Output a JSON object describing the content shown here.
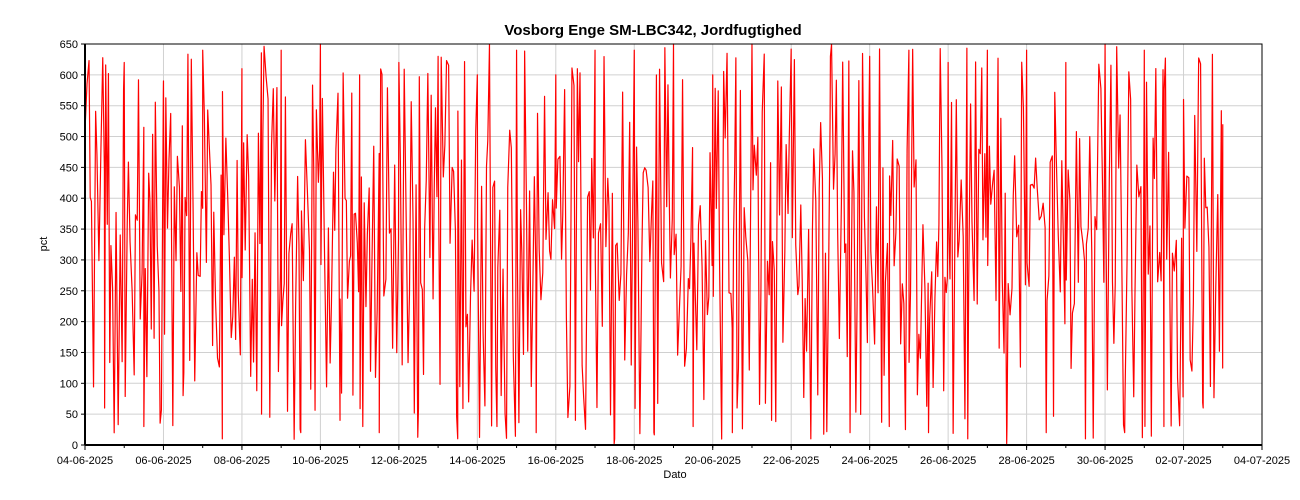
{
  "chart_data": {
    "type": "line",
    "title": "Vosborg Enge SM-LBC342, Jordfugtighed",
    "xlabel": "Dato",
    "ylabel": "pct",
    "ylim": [
      0,
      650
    ],
    "yticks": [
      0,
      50,
      100,
      150,
      200,
      250,
      300,
      350,
      400,
      450,
      500,
      550,
      600,
      650
    ],
    "xlim": [
      "2025-06-04",
      "2025-07-04"
    ],
    "xticks": [
      "04-06-2025",
      "06-06-2025",
      "08-06-2025",
      "10-06-2025",
      "12-06-2025",
      "14-06-2025",
      "16-06-2025",
      "18-06-2025",
      "20-06-2025",
      "22-06-2025",
      "24-06-2025",
      "26-06-2025",
      "28-06-2025",
      "30-06-2025",
      "02-07-2025",
      "04-07-2025"
    ],
    "grid": true,
    "legend": "none",
    "series": [
      {
        "color": "#ff0000",
        "start": "2025-06-04",
        "end": "2025-07-03",
        "range": [
          0,
          650
        ],
        "points": [
          [
            "2025-06-04",
            510
          ],
          [
            "2025-06-04 12:00",
            60
          ],
          [
            "2025-06-05",
            620
          ],
          [
            "2025-06-05 12:00",
            30
          ],
          [
            "2025-06-06",
            590
          ],
          [
            "2025-06-06 12:00",
            80
          ],
          [
            "2025-06-07",
            640
          ],
          [
            "2025-06-07 12:00",
            10
          ],
          [
            "2025-06-08",
            610
          ],
          [
            "2025-06-08 12:00",
            50
          ],
          [
            "2025-06-09",
            640
          ],
          [
            "2025-06-09 12:00",
            20
          ],
          [
            "2025-06-10",
            650
          ],
          [
            "2025-06-10 12:00",
            40
          ],
          [
            "2025-06-11",
            600
          ],
          [
            "2025-06-11 12:00",
            20
          ],
          [
            "2025-06-12",
            620
          ],
          [
            "2025-06-12 12:00",
            60
          ],
          [
            "2025-06-13",
            630
          ],
          [
            "2025-06-13 12:00",
            10
          ],
          [
            "2025-06-14",
            600
          ],
          [
            "2025-06-14 12:00",
            30
          ],
          [
            "2025-06-15",
            640
          ],
          [
            "2025-06-15 12:00",
            20
          ],
          [
            "2025-06-16",
            600
          ],
          [
            "2025-06-16 12:00",
            40
          ],
          [
            "2025-06-17",
            640
          ],
          [
            "2025-06-17 12:00",
            10
          ],
          [
            "2025-06-18",
            640
          ],
          [
            "2025-06-18 12:00",
            20
          ],
          [
            "2025-06-19",
            650
          ],
          [
            "2025-06-19 12:00",
            30
          ],
          [
            "2025-06-20",
            600
          ],
          [
            "2025-06-20 12:00",
            20
          ],
          [
            "2025-06-21",
            650
          ],
          [
            "2025-06-21 12:00",
            40
          ],
          [
            "2025-06-22",
            620
          ],
          [
            "2025-06-22 12:00",
            10
          ],
          [
            "2025-06-23",
            630
          ],
          [
            "2025-06-23 12:00",
            20
          ],
          [
            "2025-06-24",
            630
          ],
          [
            "2025-06-24 12:00",
            30
          ],
          [
            "2025-06-25",
            640
          ],
          [
            "2025-06-25 12:00",
            20
          ],
          [
            "2025-06-26",
            620
          ],
          [
            "2025-06-26 12:00",
            10
          ],
          [
            "2025-06-27",
            640
          ],
          [
            "2025-06-27 12:00",
            30
          ],
          [
            "2025-06-28",
            640
          ],
          [
            "2025-06-28 12:00",
            20
          ],
          [
            "2025-06-29",
            620
          ],
          [
            "2025-06-29 12:00",
            10
          ],
          [
            "2025-06-30",
            650
          ],
          [
            "2025-06-30 12:00",
            20
          ],
          [
            "2025-07-01",
            640
          ],
          [
            "2025-07-01 12:00",
            30
          ],
          [
            "2025-07-02",
            560
          ],
          [
            "2025-07-02 12:00",
            60
          ],
          [
            "2025-07-03",
            520
          ]
        ]
      }
    ]
  }
}
